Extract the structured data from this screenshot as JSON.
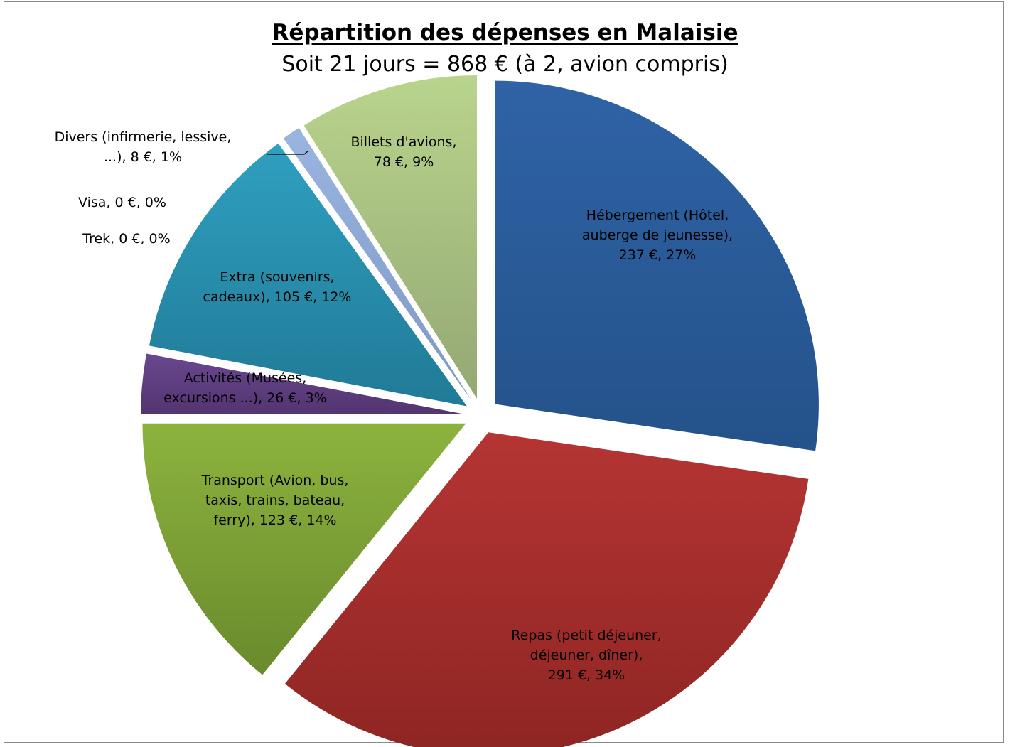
{
  "chart_data": {
    "type": "pie",
    "title": "Répartition des dépenses en Malaisie",
    "subtitle": "Soit 21 jours =  868 € (à 2, avion compris)",
    "slices": [
      {
        "label_lines": [
          "Hébergement (Hôtel,",
          "auberge de jeunesse),",
          "237 €, 27%"
        ],
        "value": 237,
        "percent": 27,
        "color": "#2f63a6",
        "color_dark": "#24528a"
      },
      {
        "label_lines": [
          "Repas (petit déjeuner,",
          "déjeuner, dîner),",
          "291 €, 34%"
        ],
        "value": 291,
        "percent": 34,
        "color": "#b53533",
        "color_dark": "#8e2523"
      },
      {
        "label_lines": [
          "Transport (Avion, bus,",
          "taxis, trains, bateau,",
          "ferry), 123 €, 14%"
        ],
        "value": 123,
        "percent": 14,
        "color": "#8cb33e",
        "color_dark": "#6a8a2c"
      },
      {
        "label_lines": [
          "Activités (Musées,",
          "excursions ...), 26 €, 3%"
        ],
        "value": 26,
        "percent": 3,
        "color": "#6a4790",
        "color_dark": "#533570"
      },
      {
        "label_lines": [
          "Extra (souvenirs,",
          "cadeaux), 105 €, 12%"
        ],
        "value": 105,
        "percent": 12,
        "color": "#2fa0c0",
        "color_dark": "#207a96"
      },
      {
        "label_lines": [
          "Trek, 0 €, 0%"
        ],
        "value": 0,
        "percent": 0,
        "color": "#e08a2c",
        "color_dark": "#b56c1f"
      },
      {
        "label_lines": [
          "Visa, 0 €, 0%"
        ],
        "value": 0,
        "percent": 0,
        "color": "#d8c43a",
        "color_dark": "#ad9c2a"
      },
      {
        "label_lines": [
          "Divers (infirmerie, lessive,",
          "...), 8 €, 1%"
        ],
        "value": 8,
        "percent": 1,
        "color": "#9ab5e0",
        "color_dark": "#7d97c4"
      },
      {
        "label_lines": [
          "Billets d'avions,",
          "78 €, 9%"
        ],
        "value": 78,
        "percent": 9,
        "color": "#b9d48c",
        "color_dark": "#94a874"
      }
    ]
  }
}
